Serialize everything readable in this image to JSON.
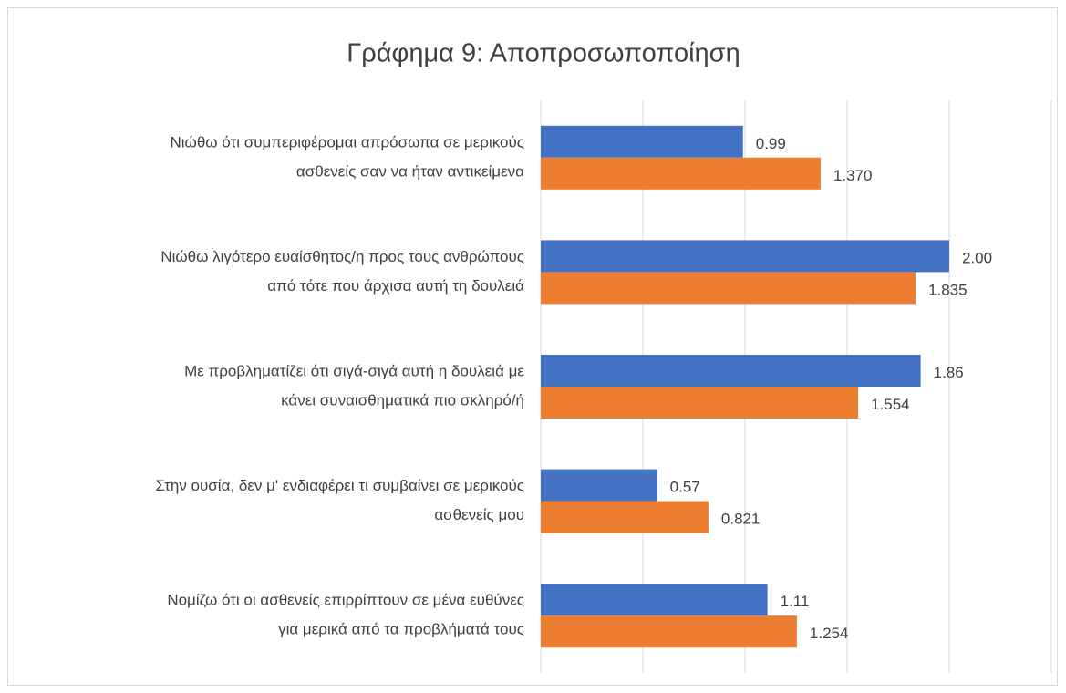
{
  "chart_data": {
    "type": "bar",
    "orientation": "horizontal",
    "title": "Γράφημα 9: Αποπροσωποποίηση",
    "categories": [
      [
        "Νιώθω ότι συμπεριφέρομαι απρόσωπα σε μερικούς",
        "ασθενείς σαν να ήταν αντικείμενα"
      ],
      [
        "Νιώθω λιγότερο ευαίσθητος/η προς τους ανθρώπους",
        "από τότε που άρχισα αυτή τη δουλειά"
      ],
      [
        "Με προβληματίζει ότι σιγά-σιγά αυτή η δουλειά με",
        "κάνει συναισθηματικά πιο σκληρό/ή"
      ],
      [
        "Στην ουσία, δεν μ' ενδιαφέρει τι συμβαίνει σε μερικούς",
        "ασθενείς μου"
      ],
      [
        "Νομίζω ότι οι ασθενείς επιρρίπτουν σε μένα ευθύνες",
        "για μερικά από τα προβλήματά τους"
      ]
    ],
    "series": [
      {
        "color": "#4472c4",
        "values": [
          0.99,
          2.0,
          1.86,
          0.57,
          1.11
        ],
        "value_labels": [
          "0.99",
          "2.00",
          "1.86",
          "0.57",
          "1.11"
        ]
      },
      {
        "color": "#ed7d31",
        "values": [
          1.37,
          1.835,
          1.554,
          0.821,
          1.254
        ],
        "value_labels": [
          "1.370",
          "1.835",
          "1.554",
          "0.821",
          "1.254"
        ]
      }
    ],
    "xlim": [
      0,
      2.5
    ],
    "xticks": [
      0,
      0.5,
      1,
      1.5,
      2,
      2.5
    ],
    "grid": true
  }
}
